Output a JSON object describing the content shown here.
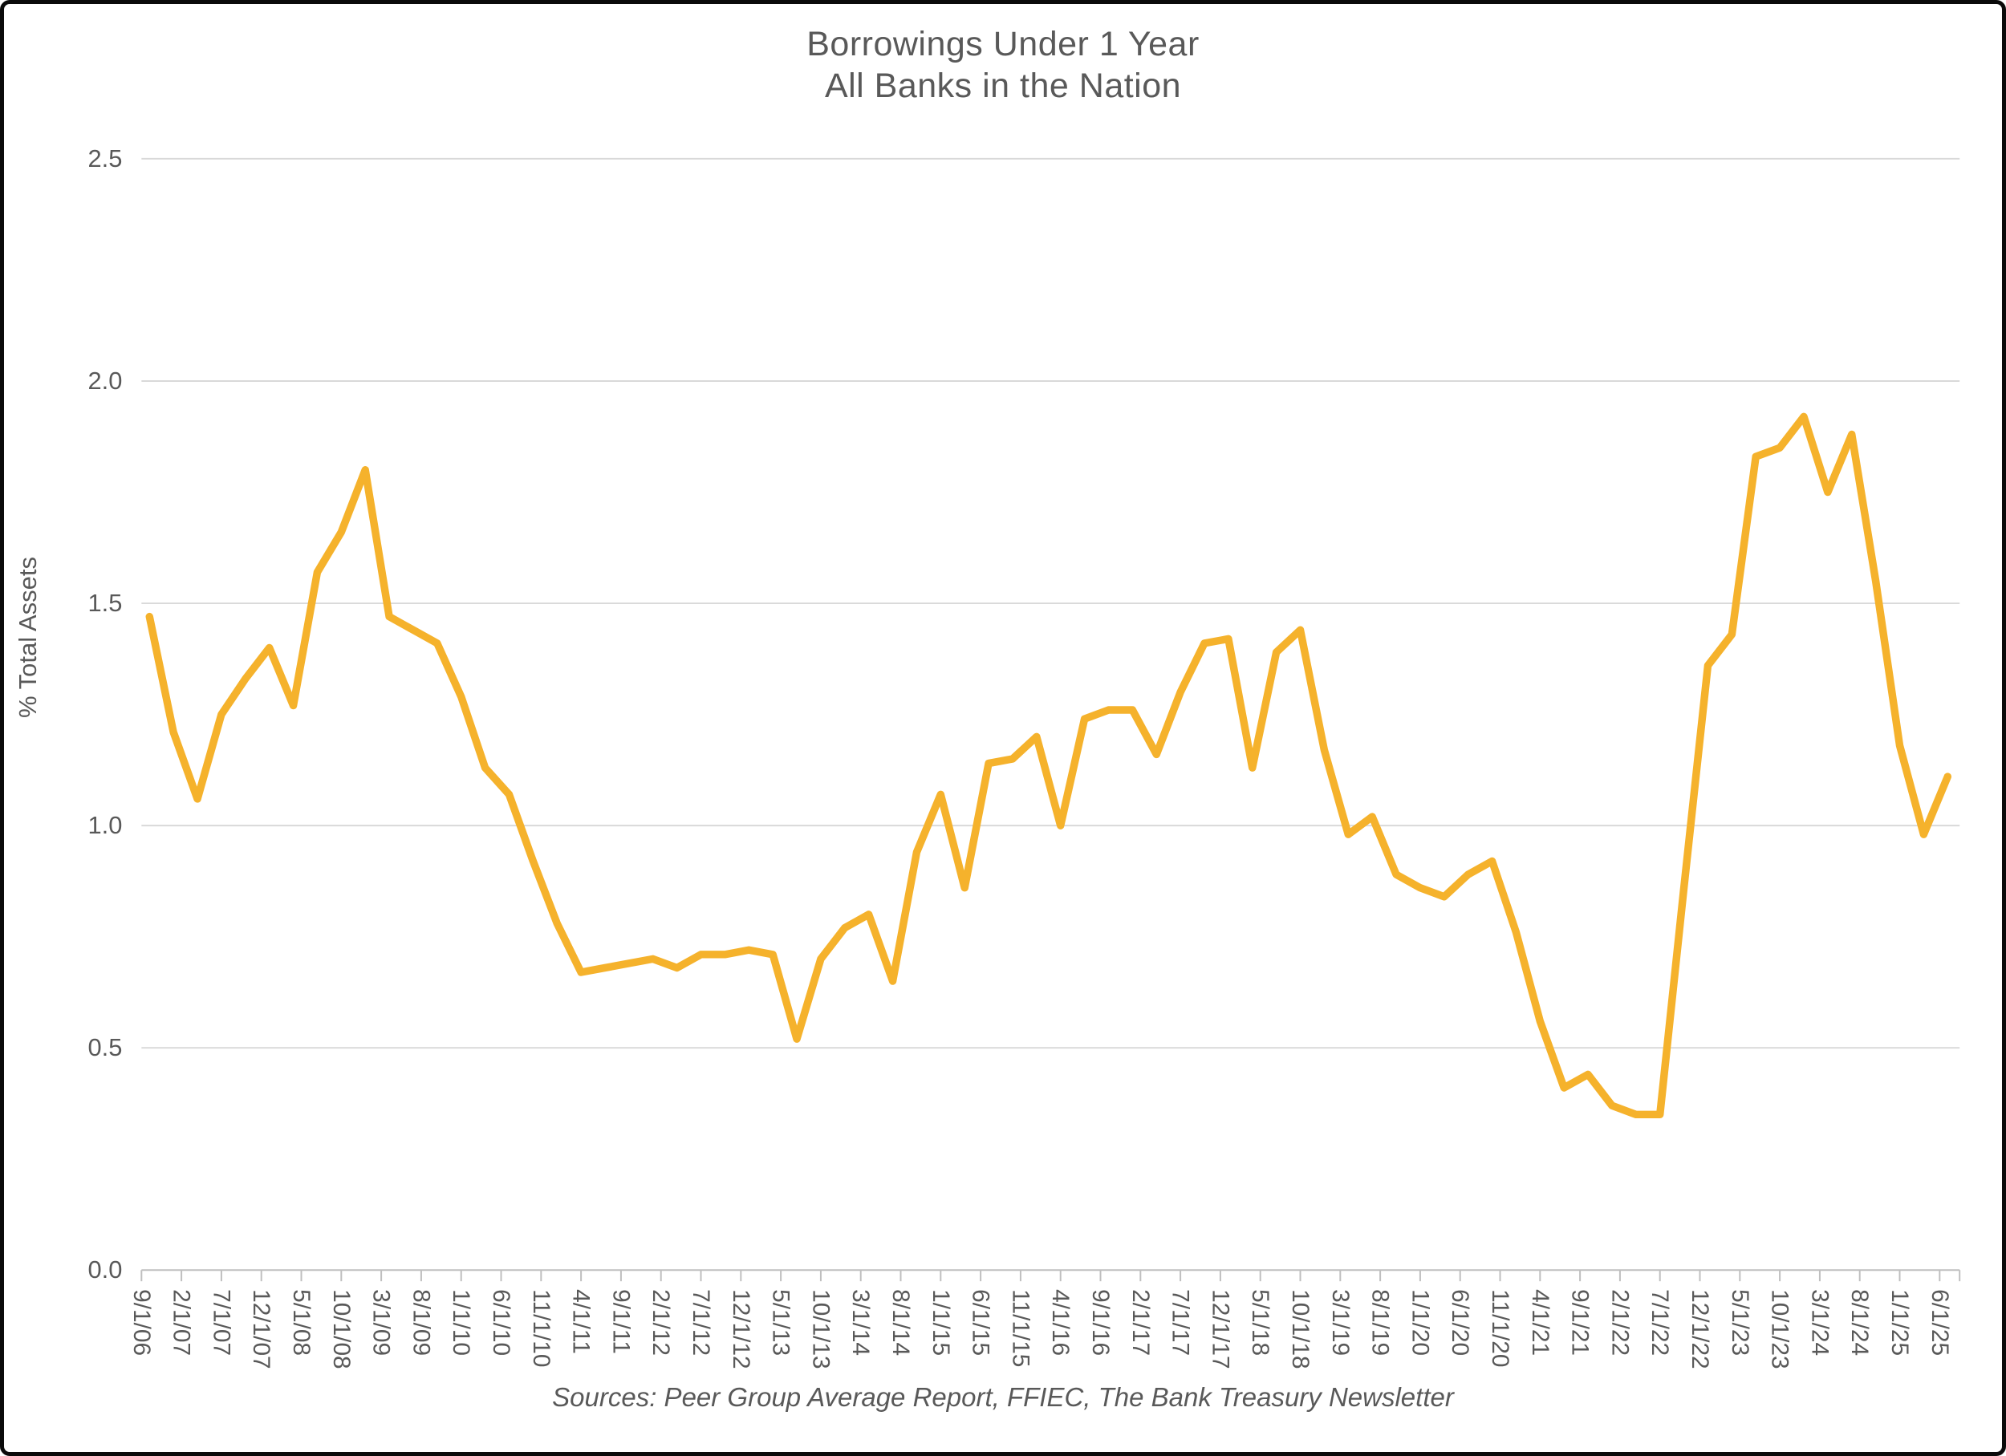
{
  "chart_data": {
    "type": "line",
    "title": "Borrowings Under 1 Year",
    "subtitle": "All Banks in the Nation",
    "ylabel": "% Total Assets",
    "source_note": "Sources: Peer Group Average Report, FFIEC, The Bank Treasury Newsletter",
    "ylim": [
      0.0,
      2.5
    ],
    "grid": "horizontal",
    "legend_position": "none",
    "y_ticks": [
      {
        "label": "2.5",
        "value": 2.5
      },
      {
        "label": "2.0",
        "value": 2.0
      },
      {
        "label": "1.5",
        "value": 1.5
      },
      {
        "label": "1.0",
        "value": 1.0
      },
      {
        "label": "0.5",
        "value": 0.5
      },
      {
        "label": "0.0",
        "value": 0.0
      }
    ],
    "x_tick_interval_months": 5,
    "x_tick_labels": [
      "9/1/06",
      "2/1/07",
      "7/1/07",
      "12/1/07",
      "5/1/08",
      "10/1/08",
      "3/1/09",
      "8/1/09",
      "1/1/10",
      "6/1/10",
      "11/1/10",
      "4/1/11",
      "9/1/11",
      "2/1/12",
      "7/1/12",
      "12/1/12",
      "5/1/13",
      "10/1/13",
      "3/1/14",
      "8/1/14",
      "1/1/15",
      "6/1/15",
      "11/1/15",
      "4/1/16",
      "9/1/16",
      "2/1/17",
      "7/1/17",
      "12/1/17",
      "5/1/18",
      "10/1/18",
      "3/1/19",
      "8/1/19",
      "1/1/20",
      "6/1/20",
      "11/1/20",
      "4/1/21",
      "9/1/21",
      "2/1/22",
      "7/1/22",
      "12/1/22",
      "5/1/23",
      "10/1/23",
      "3/1/24",
      "8/1/24",
      "1/1/25",
      "6/1/25"
    ],
    "series": [
      {
        "name": "Borrowings under 1 year, % of total assets",
        "points": [
          {
            "date": "9/30/06",
            "value": 1.47
          },
          {
            "date": "12/31/06",
            "value": 1.21
          },
          {
            "date": "3/31/07",
            "value": 1.06
          },
          {
            "date": "6/30/07",
            "value": 1.25
          },
          {
            "date": "9/30/07",
            "value": 1.33
          },
          {
            "date": "12/31/07",
            "value": 1.4
          },
          {
            "date": "3/31/08",
            "value": 1.27
          },
          {
            "date": "6/30/08",
            "value": 1.57
          },
          {
            "date": "9/30/08",
            "value": 1.66
          },
          {
            "date": "12/31/08",
            "value": 1.8
          },
          {
            "date": "3/31/09",
            "value": 1.47
          },
          {
            "date": "6/30/09",
            "value": 1.44
          },
          {
            "date": "9/30/09",
            "value": 1.41
          },
          {
            "date": "12/31/09",
            "value": 1.29
          },
          {
            "date": "3/31/10",
            "value": 1.13
          },
          {
            "date": "6/30/10",
            "value": 1.07
          },
          {
            "date": "9/30/10",
            "value": 0.92
          },
          {
            "date": "12/31/10",
            "value": 0.78
          },
          {
            "date": "3/31/11",
            "value": 0.67
          },
          {
            "date": "6/30/11",
            "value": 0.68
          },
          {
            "date": "9/30/11",
            "value": 0.69
          },
          {
            "date": "12/31/11",
            "value": 0.7
          },
          {
            "date": "3/31/12",
            "value": 0.68
          },
          {
            "date": "6/30/12",
            "value": 0.71
          },
          {
            "date": "9/30/12",
            "value": 0.71
          },
          {
            "date": "12/31/12",
            "value": 0.72
          },
          {
            "date": "3/31/13",
            "value": 0.71
          },
          {
            "date": "6/30/13",
            "value": 0.52
          },
          {
            "date": "9/30/13",
            "value": 0.7
          },
          {
            "date": "12/31/13",
            "value": 0.77
          },
          {
            "date": "3/31/14",
            "value": 0.8
          },
          {
            "date": "6/30/14",
            "value": 0.65
          },
          {
            "date": "9/30/14",
            "value": 0.94
          },
          {
            "date": "12/31/14",
            "value": 1.07
          },
          {
            "date": "3/31/15",
            "value": 0.86
          },
          {
            "date": "6/30/15",
            "value": 1.14
          },
          {
            "date": "9/30/15",
            "value": 1.15
          },
          {
            "date": "12/31/15",
            "value": 1.2
          },
          {
            "date": "3/31/16",
            "value": 1.0
          },
          {
            "date": "6/30/16",
            "value": 1.24
          },
          {
            "date": "9/30/16",
            "value": 1.26
          },
          {
            "date": "12/31/16",
            "value": 1.26
          },
          {
            "date": "3/31/17",
            "value": 1.16
          },
          {
            "date": "6/30/17",
            "value": 1.3
          },
          {
            "date": "9/30/17",
            "value": 1.41
          },
          {
            "date": "12/31/17",
            "value": 1.42
          },
          {
            "date": "3/31/18",
            "value": 1.13
          },
          {
            "date": "6/30/18",
            "value": 1.39
          },
          {
            "date": "9/30/18",
            "value": 1.44
          },
          {
            "date": "12/31/18",
            "value": 1.17
          },
          {
            "date": "3/31/19",
            "value": 0.98
          },
          {
            "date": "6/30/19",
            "value": 1.02
          },
          {
            "date": "9/30/19",
            "value": 0.89
          },
          {
            "date": "12/31/19",
            "value": 0.86
          },
          {
            "date": "3/31/20",
            "value": 0.84
          },
          {
            "date": "6/30/20",
            "value": 0.89
          },
          {
            "date": "9/30/20",
            "value": 0.92
          },
          {
            "date": "12/31/20",
            "value": 0.76
          },
          {
            "date": "3/31/21",
            "value": 0.56
          },
          {
            "date": "6/30/21",
            "value": 0.41
          },
          {
            "date": "9/30/21",
            "value": 0.44
          },
          {
            "date": "12/31/21",
            "value": 0.37
          },
          {
            "date": "3/31/22",
            "value": 0.35
          },
          {
            "date": "6/30/22",
            "value": 0.35
          },
          {
            "date": "9/30/22",
            "value": 0.86
          },
          {
            "date": "12/31/22",
            "value": 1.36
          },
          {
            "date": "3/31/23",
            "value": 1.43
          },
          {
            "date": "6/30/23",
            "value": 1.83
          },
          {
            "date": "9/30/23",
            "value": 1.85
          },
          {
            "date": "12/31/23",
            "value": 1.92
          },
          {
            "date": "3/31/24",
            "value": 1.75
          },
          {
            "date": "6/30/24",
            "value": 1.88
          },
          {
            "date": "9/30/24",
            "value": 1.55
          },
          {
            "date": "12/31/24",
            "value": 1.18
          },
          {
            "date": "3/31/25",
            "value": 0.98
          },
          {
            "date": "6/30/25",
            "value": 1.11
          }
        ]
      }
    ],
    "colors": {
      "line": "#F5B22C",
      "text": "#595959",
      "gridline": "#D9D9D9",
      "axis": "#BFBFBF",
      "background": "#FFFFFF",
      "frame_border": "#0A0A0A"
    }
  }
}
